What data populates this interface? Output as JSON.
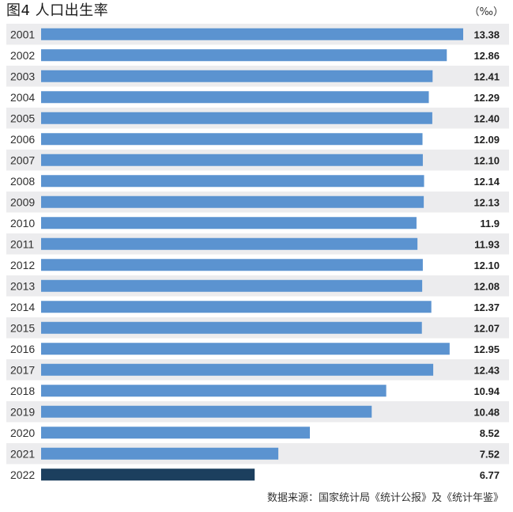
{
  "header": {
    "title": "图4 人口出生率",
    "unit": "（‰）"
  },
  "footer": {
    "source": "数据来源：国家统计局《统计公报》及《统计年鉴》"
  },
  "colors": {
    "bar": "#5b93d0",
    "bar_highlight": "#1c3f5e",
    "row_band": "#ececee"
  },
  "chart_data": {
    "type": "bar",
    "orientation": "horizontal",
    "categories": [
      "2001",
      "2002",
      "2003",
      "2004",
      "2005",
      "2006",
      "2007",
      "2008",
      "2009",
      "2010",
      "2011",
      "2012",
      "2013",
      "2014",
      "2015",
      "2016",
      "2017",
      "2018",
      "2019",
      "2020",
      "2021",
      "2022"
    ],
    "values": [
      13.38,
      12.86,
      12.41,
      12.29,
      12.4,
      12.09,
      12.1,
      12.14,
      12.13,
      11.9,
      11.93,
      12.1,
      12.08,
      12.37,
      12.07,
      12.95,
      12.43,
      10.94,
      10.48,
      8.52,
      7.52,
      6.77
    ],
    "labels": [
      "13.38",
      "12.86",
      "12.41",
      "12.29",
      "12.40",
      "12.09",
      "12.10",
      "12.14",
      "12.13",
      "11.9",
      "11.93",
      "12.10",
      "12.08",
      "12.37",
      "12.07",
      "12.95",
      "12.43",
      "10.94",
      "10.48",
      "8.52",
      "7.52",
      "6.77"
    ],
    "highlight_index": 21,
    "xlim": [
      0,
      13.38
    ],
    "grid": false,
    "legend": "none",
    "title": "图4 人口出生率",
    "ylabel": "",
    "xlabel": ""
  }
}
